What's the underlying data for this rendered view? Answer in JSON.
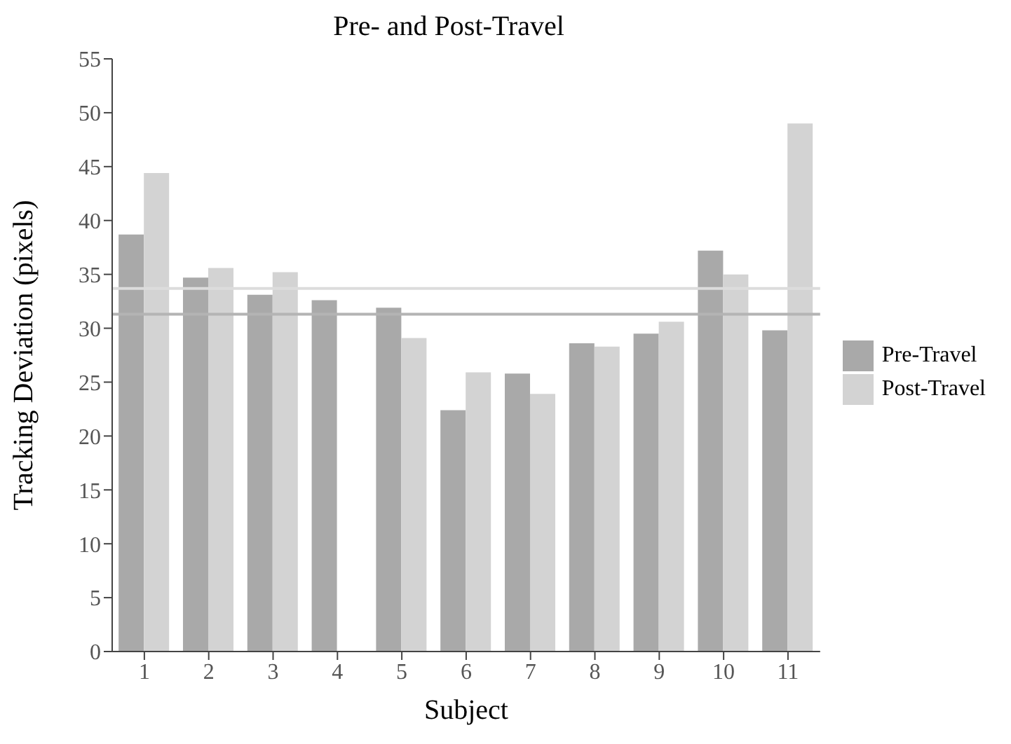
{
  "chart_data": {
    "type": "bar",
    "title": "Pre- and Post-Travel",
    "xlabel": "Subject",
    "ylabel": "Tracking Deviation (pixels)",
    "categories": [
      "1",
      "2",
      "3",
      "4",
      "5",
      "6",
      "7",
      "8",
      "9",
      "10",
      "11"
    ],
    "series": [
      {
        "name": "Pre-Travel",
        "color": "#a9a9a9",
        "values": [
          38.7,
          34.7,
          33.1,
          32.6,
          31.9,
          22.4,
          25.8,
          28.6,
          29.5,
          37.2,
          29.8
        ]
      },
      {
        "name": "Post-Travel",
        "color": "#d3d3d3",
        "values": [
          44.4,
          35.6,
          35.2,
          null,
          29.1,
          25.9,
          23.9,
          28.3,
          30.6,
          35.0,
          49.0
        ]
      }
    ],
    "ylim": [
      0,
      55
    ],
    "yticks": [
      0,
      5,
      10,
      15,
      20,
      25,
      30,
      35,
      40,
      45,
      50,
      55
    ],
    "ref_lines": [
      {
        "axis": "y",
        "value": 33.7,
        "color": "#dcdcdc"
      },
      {
        "axis": "y",
        "value": 31.3,
        "color": "#b4b4b4"
      }
    ],
    "grid": false,
    "legend": "right"
  }
}
